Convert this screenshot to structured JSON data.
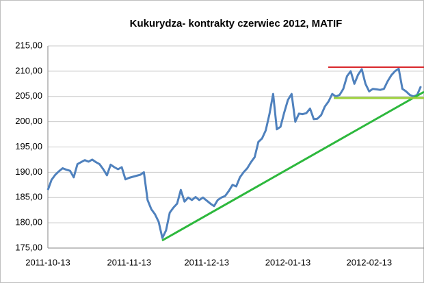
{
  "chart_data": {
    "type": "line",
    "title": "Kukurydza- kontrakty czerwiec 2012, MATIF",
    "categories": [
      "2011-10-13",
      null,
      null,
      null,
      null,
      null,
      null,
      null,
      null,
      null,
      null,
      null,
      null,
      null,
      null,
      null,
      null,
      null,
      null,
      null,
      null,
      null,
      "2011-11-13",
      null,
      null,
      null,
      null,
      null,
      null,
      null,
      null,
      null,
      null,
      null,
      null,
      null,
      null,
      null,
      null,
      null,
      null,
      null,
      null,
      "2011-12-13",
      null,
      null,
      null,
      null,
      null,
      null,
      null,
      null,
      null,
      null,
      null,
      null,
      null,
      null,
      null,
      null,
      null,
      null,
      null,
      null,
      null,
      "2012-01-13",
      null,
      null,
      null,
      null,
      null,
      null,
      null,
      null,
      null,
      null,
      null,
      null,
      null,
      null,
      null,
      null,
      null,
      null,
      null,
      null,
      null,
      "2012-02-13",
      null,
      null,
      null,
      null,
      null,
      null,
      null,
      null,
      null,
      null,
      null,
      null,
      null,
      null
    ],
    "values": [
      186.5,
      188.5,
      189.5,
      190.2,
      190.8,
      190.5,
      190.3,
      189.0,
      191.6,
      192.0,
      192.4,
      192.1,
      192.5,
      192.0,
      191.6,
      190.6,
      189.4,
      191.5,
      191.0,
      190.6,
      191.0,
      188.6,
      188.9,
      189.1,
      189.3,
      189.5,
      190.0,
      184.5,
      182.7,
      181.7,
      180.2,
      177.0,
      178.5,
      182.0,
      183.0,
      183.8,
      186.5,
      184.2,
      185.0,
      184.5,
      185.1,
      184.5,
      185.0,
      184.4,
      183.8,
      183.3,
      184.5,
      185.0,
      185.3,
      186.3,
      187.5,
      187.2,
      189.0,
      190.0,
      190.8,
      192.0,
      193.0,
      196.0,
      196.7,
      198.3,
      201.5,
      205.5,
      198.5,
      199.0,
      201.8,
      204.3,
      205.5,
      200.0,
      201.6,
      201.5,
      201.7,
      202.6,
      200.5,
      200.6,
      201.3,
      203.0,
      204.0,
      205.5,
      205.0,
      205.3,
      206.5,
      209.0,
      210.0,
      207.5,
      209.3,
      210.4,
      207.5,
      206.0,
      206.5,
      206.4,
      206.3,
      206.5,
      208.0,
      209.2,
      210.0,
      210.5,
      206.5,
      206.0,
      205.3,
      205.0,
      205.3,
      207.0
    ],
    "color": "#4f81bd",
    "ylim": [
      175,
      215
    ],
    "yticks": [
      {
        "value": 175,
        "label": "175,00"
      },
      {
        "value": 180,
        "label": "180,00"
      },
      {
        "value": 185,
        "label": "185,00"
      },
      {
        "value": 190,
        "label": "190,00"
      },
      {
        "value": 195,
        "label": "195,00"
      },
      {
        "value": 200,
        "label": "200,00"
      },
      {
        "value": 205,
        "label": "205,00"
      },
      {
        "value": 210,
        "label": "210,00"
      },
      {
        "value": 215,
        "label": "215,00"
      }
    ],
    "grid": true
  }
}
